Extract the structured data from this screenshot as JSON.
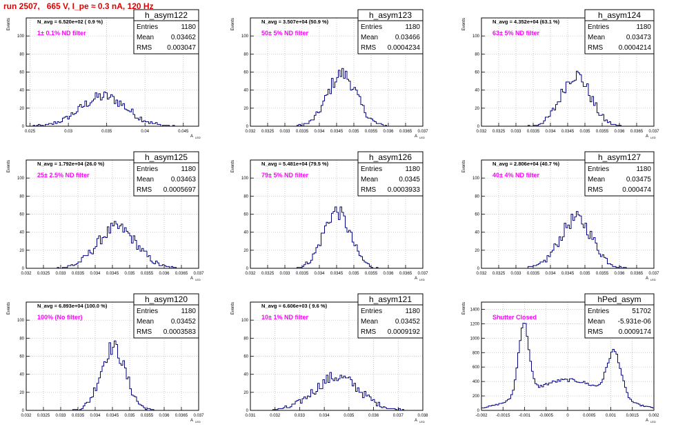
{
  "title": "run 2507,   665 V, I_pe ≈ 0.3 nA, 120 Hz",
  "colors": {
    "title": "#e00000",
    "histogram": "#000080",
    "annotation": "#ff00ff",
    "grid": "#b0b0b0"
  },
  "chart_data": [
    {
      "type": "histogram",
      "name": "h_asym122",
      "stats": {
        "entries_label": "Entries",
        "entries": "1180",
        "mean_label": "Mean",
        "mean": "0.03462",
        "rms_label": "RMS",
        "rms": "0.003047"
      },
      "navg": "N_avg = 6.520e+02 ( 0.9 %)",
      "note": "1± 0.1% ND filter",
      "ylabel": "Events",
      "xlabel": "A",
      "xlim": [
        0.0245,
        0.047
      ],
      "ylim": [
        0,
        120
      ],
      "yticks": [
        0,
        20,
        40,
        60,
        80,
        100
      ],
      "xticks": [
        "0.025",
        "0.03",
        "0.035",
        "0.04",
        "0.045"
      ],
      "xtick_values": [
        0.025,
        0.03,
        0.035,
        0.04,
        0.045
      ],
      "gaussians": [
        {
          "mu": 0.0346,
          "sigma": 0.003,
          "amp": 33
        }
      ]
    },
    {
      "type": "histogram",
      "name": "h_asym123",
      "stats": {
        "entries_label": "Entries",
        "entries": "1180",
        "mean_label": "Mean",
        "mean": "0.03466",
        "rms_label": "RMS",
        "rms": "0.0004234"
      },
      "navg": "N_avg = 3.507e+04 (50.9 %)",
      "note": "50± 5% ND filter",
      "ylabel": "Events",
      "xlabel": "A",
      "xlim": [
        0.032,
        0.037
      ],
      "ylim": [
        0,
        120
      ],
      "yticks": [
        0,
        20,
        40,
        60,
        80,
        100
      ],
      "xticks": [
        "0.032",
        "0.0325",
        "0.033",
        "0.0335",
        "0.034",
        "0.0345",
        "0.035",
        "0.0355",
        "0.036",
        "0.0365",
        "0.037"
      ],
      "xtick_values": [
        0.032,
        0.0325,
        0.033,
        0.0335,
        0.034,
        0.0345,
        0.035,
        0.0355,
        0.036,
        0.0365,
        0.037
      ],
      "gaussians": [
        {
          "mu": 0.03466,
          "sigma": 0.00042,
          "amp": 58
        }
      ]
    },
    {
      "type": "histogram",
      "name": "h_asym124",
      "stats": {
        "entries_label": "Entries",
        "entries": "1180",
        "mean_label": "Mean",
        "mean": "0.03473",
        "rms_label": "RMS",
        "rms": "0.0004214"
      },
      "navg": "N_avg = 4.352e+04 (63.1 %)",
      "note": "63± 5% ND filter",
      "ylabel": "Events",
      "xlabel": "A",
      "xlim": [
        0.032,
        0.037
      ],
      "ylim": [
        0,
        120
      ],
      "yticks": [
        0,
        20,
        40,
        60,
        80,
        100
      ],
      "xticks": [
        "0.032",
        "0.0325",
        "0.033",
        "0.0335",
        "0.034",
        "0.0345",
        "0.035",
        "0.0355",
        "0.036",
        "0.0365",
        "0.037"
      ],
      "xtick_values": [
        0.032,
        0.0325,
        0.033,
        0.0335,
        0.034,
        0.0345,
        0.035,
        0.0355,
        0.036,
        0.0365,
        0.037
      ],
      "gaussians": [
        {
          "mu": 0.03473,
          "sigma": 0.00042,
          "amp": 57
        }
      ]
    },
    {
      "type": "histogram",
      "name": "h_asym125",
      "stats": {
        "entries_label": "Entries",
        "entries": "1180",
        "mean_label": "Mean",
        "mean": "0.03463",
        "rms_label": "RMS",
        "rms": "0.0005697"
      },
      "navg": "N_avg = 1.792e+04 (26.0 %)",
      "note": "25± 2.5% ND filter",
      "ylabel": "Events",
      "xlabel": "A",
      "xlim": [
        0.032,
        0.037
      ],
      "ylim": [
        0,
        120
      ],
      "yticks": [
        0,
        20,
        40,
        60,
        80,
        100
      ],
      "xticks": [
        "0.032",
        "0.0325",
        "0.033",
        "0.0335",
        "0.034",
        "0.0345",
        "0.035",
        "0.0355",
        "0.036",
        "0.0365",
        "0.037"
      ],
      "xtick_values": [
        0.032,
        0.0325,
        0.033,
        0.0335,
        0.034,
        0.0345,
        0.035,
        0.0355,
        0.036,
        0.0365,
        0.037
      ],
      "gaussians": [
        {
          "mu": 0.03463,
          "sigma": 0.00057,
          "amp": 45
        }
      ]
    },
    {
      "type": "histogram",
      "name": "h_asym126",
      "stats": {
        "entries_label": "Entries",
        "entries": "1180",
        "mean_label": "Mean",
        "mean": "0.0345",
        "rms_label": "RMS",
        "rms": "0.0003933"
      },
      "navg": "N_avg = 5.481e+04 (79.5 %)",
      "note": "79± 5% ND filter",
      "ylabel": "Events",
      "xlabel": "A",
      "xlim": [
        0.032,
        0.037
      ],
      "ylim": [
        0,
        120
      ],
      "yticks": [
        0,
        20,
        40,
        60,
        80,
        100
      ],
      "xticks": [
        "0.032",
        "0.0325",
        "0.033",
        "0.0335",
        "0.034",
        "0.0345",
        "0.035",
        "0.0355",
        "0.036",
        "0.0365",
        "0.037"
      ],
      "xtick_values": [
        0.032,
        0.0325,
        0.033,
        0.0335,
        0.034,
        0.0345,
        0.035,
        0.0355,
        0.036,
        0.0365,
        0.037
      ],
      "gaussians": [
        {
          "mu": 0.0345,
          "sigma": 0.00039,
          "amp": 63
        }
      ]
    },
    {
      "type": "histogram",
      "name": "h_asym127",
      "stats": {
        "entries_label": "Entries",
        "entries": "1180",
        "mean_label": "Mean",
        "mean": "0.03475",
        "rms_label": "RMS",
        "rms": "0.000474"
      },
      "navg": "N_avg = 2.806e+04 (40.7 %)",
      "note": "40± 4% ND filter",
      "ylabel": "Events",
      "xlabel": "A",
      "xlim": [
        0.032,
        0.037
      ],
      "ylim": [
        0,
        120
      ],
      "yticks": [
        0,
        20,
        40,
        60,
        80,
        100
      ],
      "xticks": [
        "0.032",
        "0.0325",
        "0.033",
        "0.0335",
        "0.034",
        "0.0345",
        "0.035",
        "0.0355",
        "0.036",
        "0.0365",
        "0.037"
      ],
      "xtick_values": [
        0.032,
        0.0325,
        0.033,
        0.0335,
        0.034,
        0.0345,
        0.035,
        0.0355,
        0.036,
        0.0365,
        0.037
      ],
      "gaussians": [
        {
          "mu": 0.03475,
          "sigma": 0.00047,
          "amp": 55
        }
      ]
    },
    {
      "type": "histogram",
      "name": "h_asym120",
      "stats": {
        "entries_label": "Entries",
        "entries": "1180",
        "mean_label": "Mean",
        "mean": "0.03452",
        "rms_label": "RMS",
        "rms": "0.0003583"
      },
      "navg": "N_avg = 6.893e+04 (100.0 %)",
      "note": "100% (No filter)",
      "ylabel": "Events",
      "xlabel": "A",
      "xlim": [
        0.032,
        0.037
      ],
      "ylim": [
        0,
        120
      ],
      "yticks": [
        0,
        20,
        40,
        60,
        80,
        100
      ],
      "xticks": [
        "0.032",
        "0.0325",
        "0.033",
        "0.0335",
        "0.034",
        "0.0345",
        "0.035",
        "0.0355",
        "0.036",
        "0.0365",
        "0.037"
      ],
      "xtick_values": [
        0.032,
        0.0325,
        0.033,
        0.0335,
        0.034,
        0.0345,
        0.035,
        0.0355,
        0.036,
        0.0365,
        0.037
      ],
      "gaussians": [
        {
          "mu": 0.03452,
          "sigma": 0.00036,
          "amp": 70
        }
      ]
    },
    {
      "type": "histogram",
      "name": "h_asym121",
      "stats": {
        "entries_label": "Entries",
        "entries": "1180",
        "mean_label": "Mean",
        "mean": "0.03452",
        "rms_label": "RMS",
        "rms": "0.0009192"
      },
      "navg": "N_avg = 6.606e+03 ( 9.6 %)",
      "note": "10± 1% ND filter",
      "ylabel": "Events",
      "xlabel": "A",
      "xlim": [
        0.031,
        0.038
      ],
      "ylim": [
        0,
        120
      ],
      "yticks": [
        0,
        20,
        40,
        60,
        80,
        100
      ],
      "xticks": [
        "0.031",
        "0.032",
        "0.033",
        "0.034",
        "0.035",
        "0.036",
        "0.037",
        "0.038"
      ],
      "xtick_values": [
        0.031,
        0.032,
        0.033,
        0.034,
        0.035,
        0.036,
        0.037,
        0.038
      ],
      "gaussians": [
        {
          "mu": 0.03452,
          "sigma": 0.00092,
          "amp": 37
        }
      ]
    },
    {
      "type": "histogram",
      "name": "hPed_asym",
      "stats": {
        "entries_label": "Entries",
        "entries": "51702",
        "mean_label": "Mean",
        "mean": "-5.931e-06",
        "rms_label": "RMS",
        "rms": "0.0009174"
      },
      "navg": "",
      "note": "Shutter Closed",
      "ylabel": "Events",
      "xlabel": "A",
      "xlim": [
        -0.002,
        0.002
      ],
      "ylim": [
        0,
        1500
      ],
      "yticks": [
        0,
        200,
        400,
        600,
        800,
        1000,
        1200,
        1400
      ],
      "xticks": [
        "-0.002",
        "-0.0015",
        "-0.001",
        "-0.0005",
        "0",
        "0.0005",
        "0.001",
        "0.0015",
        "0.002"
      ],
      "xtick_values": [
        -0.002,
        -0.0015,
        -0.001,
        -0.0005,
        0,
        0.0005,
        0.001,
        0.0015,
        0.002
      ],
      "gaussians": [
        {
          "mu": -0.00102,
          "sigma": 0.00012,
          "amp": 1000
        },
        {
          "mu": 0.00108,
          "sigma": 0.00016,
          "amp": 620
        },
        {
          "mu": 0.0,
          "sigma": 0.0009,
          "amp": 420
        }
      ]
    }
  ]
}
